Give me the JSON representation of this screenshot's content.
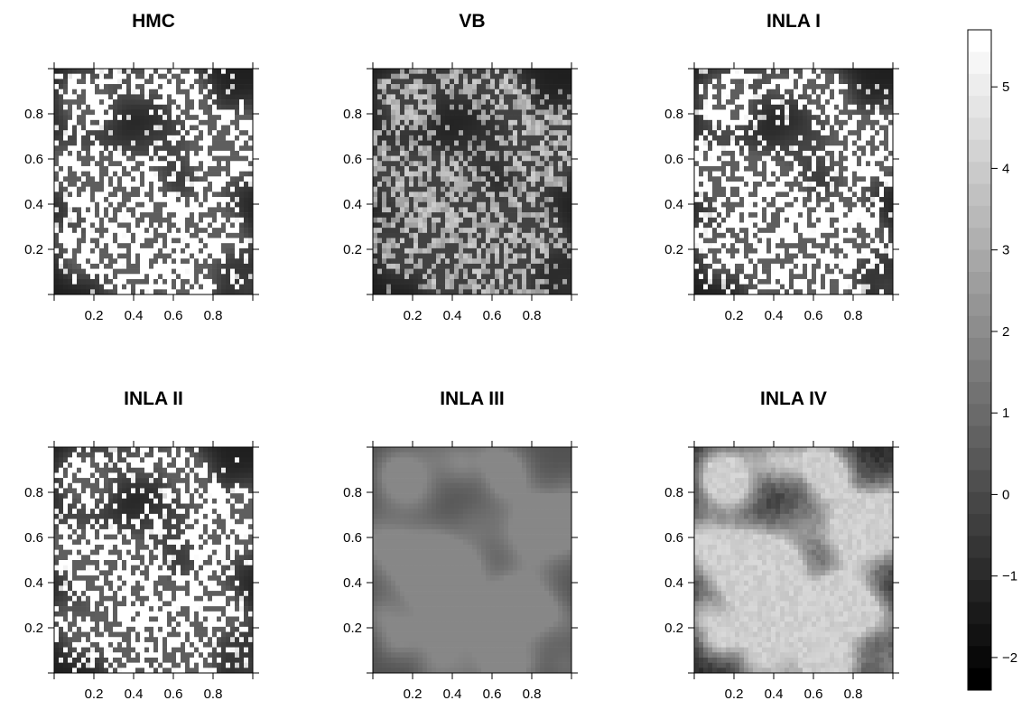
{
  "chart_data": {
    "type": "heatmap",
    "colormap": "grayscale (black = low, white = high)",
    "panels": [
      {
        "title": "HMC",
        "style": "sharp",
        "contrast": 1.0
      },
      {
        "title": "VB",
        "style": "sharp",
        "contrast": 0.55
      },
      {
        "title": "INLA I",
        "style": "sharp",
        "contrast": 1.0
      },
      {
        "title": "INLA II",
        "style": "sharp",
        "contrast": 1.0
      },
      {
        "title": "INLA III",
        "style": "smooth",
        "contrast": 0.35
      },
      {
        "title": "INLA IV",
        "style": "blotchy",
        "contrast": 0.7
      }
    ],
    "x_ticks": [
      "0.2",
      "0.4",
      "0.6",
      "0.8"
    ],
    "y_ticks": [
      "0.2",
      "0.4",
      "0.6",
      "0.8"
    ],
    "x_tick_values": [
      0.2,
      0.4,
      0.6,
      0.8
    ],
    "y_tick_values": [
      0.2,
      0.4,
      0.6,
      0.8
    ],
    "xlim": [
      0,
      1
    ],
    "ylim": [
      0,
      1
    ],
    "colorbar": {
      "ticks": [
        "5",
        "4",
        "3",
        "2",
        "1",
        "0",
        "−1",
        "−2"
      ],
      "tick_values": [
        5,
        4,
        3,
        2,
        1,
        0,
        -1,
        -2
      ],
      "range": [
        -2.4,
        5.7
      ]
    }
  }
}
